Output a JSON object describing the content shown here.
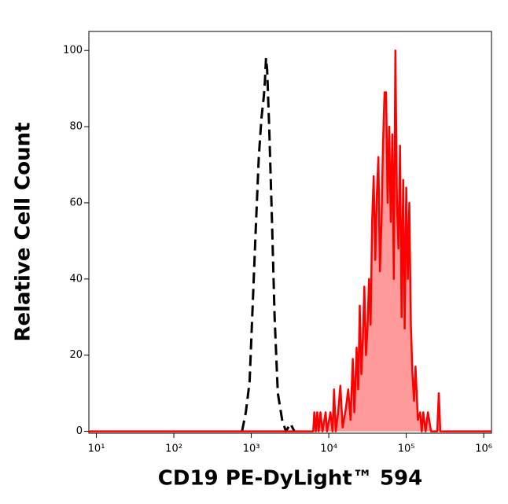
{
  "chart_data": {
    "type": "histogram-overlay",
    "xlabel": "CD19 PE-DyLight™ 594",
    "ylabel": "Relative Cell Count",
    "xscale": "log",
    "xlim": [
      8,
      1260000
    ],
    "ylim": [
      -0.5,
      105
    ],
    "xticks": [
      {
        "value": 10,
        "label": "10¹"
      },
      {
        "value": 100,
        "label": "10²"
      },
      {
        "value": 1000,
        "label": "10³"
      },
      {
        "value": 10000,
        "label": "10⁴"
      },
      {
        "value": 100000,
        "label": "10⁵"
      },
      {
        "value": 1000000,
        "label": "10⁶"
      }
    ],
    "yticks": [
      0,
      20,
      40,
      60,
      80,
      100
    ],
    "series": [
      {
        "color": "#000000",
        "dashed": true,
        "filled": false,
        "x": [
          760,
          850,
          950,
          1050,
          1150,
          1250,
          1350,
          1450,
          1500,
          1550,
          1600,
          1700,
          1850,
          2000,
          2200,
          2500,
          2800,
          3200,
          3600
        ],
        "values": [
          0,
          5,
          13,
          35,
          55,
          72,
          82,
          88,
          92,
          98,
          95,
          80,
          55,
          30,
          10,
          3,
          0,
          2,
          0
        ]
      },
      {
        "color": "#ff0000",
        "fill": "#ff9a9a",
        "dashed": false,
        "filled": true,
        "x": [
          8,
          5000,
          6300,
          6500,
          6800,
          7100,
          7400,
          7800,
          8300,
          9100,
          9500,
          10500,
          11200,
          11700,
          12300,
          13200,
          14100,
          15100,
          16600,
          17800,
          19100,
          20400,
          21400,
          22900,
          24000,
          25100,
          26300,
          27500,
          28800,
          30200,
          31600,
          33100,
          34700,
          36300,
          38000,
          39800,
          41700,
          43700,
          45700,
          47900,
          50100,
          52500,
          55000,
          57500,
          60300,
          63100,
          66100,
          69200,
          72400,
          75900,
          79400,
          83200,
          87100,
          91200,
          95500,
          100000,
          104700,
          109600,
          114800,
          120200,
          125900,
          131800,
          141300,
          151400,
          158500,
          166000,
          177800,
          190500,
          208900,
          251200,
          263000,
          275400,
          398100,
          1260000
        ],
        "values": [
          0,
          0,
          0,
          5,
          0,
          5,
          0,
          5,
          0,
          5,
          0,
          5,
          0,
          11,
          0,
          5,
          12,
          1,
          6,
          11,
          3,
          19,
          5,
          22,
          11,
          33,
          15,
          24,
          38,
          20,
          27,
          40,
          28,
          55,
          67,
          45,
          62,
          72,
          42,
          55,
          75,
          89,
          89,
          60,
          80,
          55,
          78,
          40,
          100,
          60,
          48,
          75,
          30,
          66,
          27,
          64,
          40,
          60,
          28,
          15,
          8,
          17,
          3,
          5,
          0,
          5,
          0,
          5,
          0,
          0,
          10,
          0,
          0,
          0
        ]
      }
    ]
  }
}
